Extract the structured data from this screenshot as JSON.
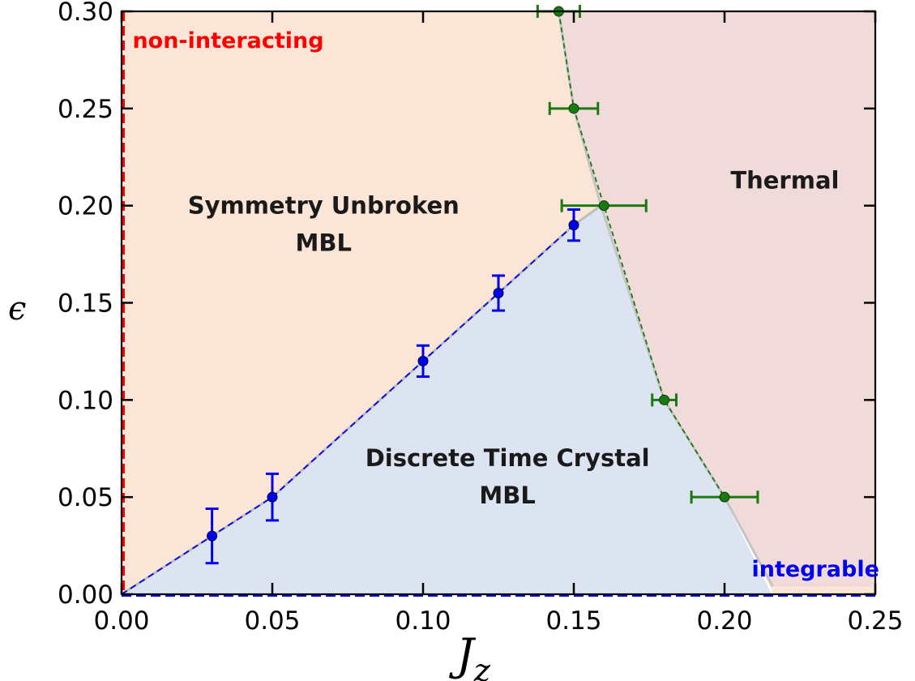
{
  "chart_data": {
    "type": "scatter",
    "xlabel": "J",
    "xlabel_sub": "z",
    "ylabel": "ϵ",
    "xlim": [
      0.0,
      0.25
    ],
    "ylim": [
      0.0,
      0.3
    ],
    "x_ticks": [
      0.0,
      0.05,
      0.1,
      0.15,
      0.2,
      0.25
    ],
    "x_tick_labels": [
      "0.00",
      "0.05",
      "0.10",
      "0.15",
      "0.20",
      "0.25"
    ],
    "y_ticks": [
      0.0,
      0.05,
      0.1,
      0.15,
      0.2,
      0.25,
      0.3
    ],
    "y_tick_labels": [
      "0.00",
      "0.05",
      "0.10",
      "0.15",
      "0.20",
      "0.25",
      "0.30"
    ],
    "grid": false,
    "regions": [
      {
        "label": "Symmetry Unbroken",
        "label2": "MBL",
        "color": "#fbe5d6",
        "at": [
          0.067,
          0.2
        ]
      },
      {
        "label": "Thermal",
        "label2": "",
        "color": "#f0dada",
        "at": [
          0.22,
          0.213
        ]
      },
      {
        "label": "Discrete Time Crystal",
        "label2": "MBL",
        "color": "#dbe4f0",
        "at": [
          0.128,
          0.07
        ]
      }
    ],
    "annotations": [
      {
        "text": "non-interacting",
        "color": "#ff0000",
        "at": [
          0.002,
          0.29
        ]
      },
      {
        "text": "integrable",
        "color": "#0000ee",
        "at": [
          0.209,
          0.01
        ]
      }
    ],
    "series": [
      {
        "name": "",
        "color": "#0000ee",
        "x": [
          0.03,
          0.05,
          0.1,
          0.125,
          0.15
        ],
        "y": [
          0.03,
          0.05,
          0.12,
          0.155,
          0.19
        ],
        "yerr": [
          0.014,
          0.012,
          0.008,
          0.009,
          0.008
        ]
      },
      {
        "name": "",
        "color": "#1a7a10",
        "x": [
          0.145,
          0.15,
          0.16,
          0.18,
          0.2
        ],
        "y": [
          0.3,
          0.25,
          0.2,
          0.1,
          0.05
        ],
        "xerr": [
          0.007,
          0.008,
          0.014,
          0.004,
          0.011
        ]
      }
    ]
  }
}
